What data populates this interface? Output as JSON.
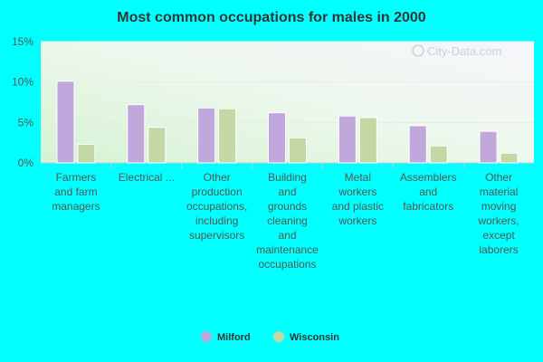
{
  "chart_data": {
    "type": "bar",
    "title": "Most common occupations for males in 2000",
    "categories": [
      [
        "Farmers",
        "and farm",
        "managers"
      ],
      [
        "Electrical ..."
      ],
      [
        "Other",
        "production",
        "occupations,",
        "including",
        "supervisors"
      ],
      [
        "Building",
        "and",
        "grounds",
        "cleaning",
        "and",
        "maintenance",
        "occupations"
      ],
      [
        "Metal",
        "workers",
        "and plastic",
        "workers"
      ],
      [
        "Assemblers",
        "and",
        "fabricators"
      ],
      [
        "Other",
        "material",
        "moving",
        "workers,",
        "except",
        "laborers"
      ]
    ],
    "series": [
      {
        "name": "Milford",
        "values": [
          10.1,
          7.2,
          6.8,
          6.2,
          5.8,
          4.6,
          3.9
        ]
      },
      {
        "name": "Wisconsin",
        "values": [
          2.3,
          4.4,
          6.7,
          3.1,
          5.6,
          2.1,
          1.2
        ]
      }
    ],
    "y_ticks": [
      "0%",
      "5%",
      "10%",
      "15%"
    ],
    "ylim": [
      0,
      15
    ],
    "legend_position": "bottom",
    "colors": {
      "Milford": "#c0a8dc",
      "Wisconsin": "#c4d8a6"
    },
    "watermark": "City-Data.com"
  }
}
